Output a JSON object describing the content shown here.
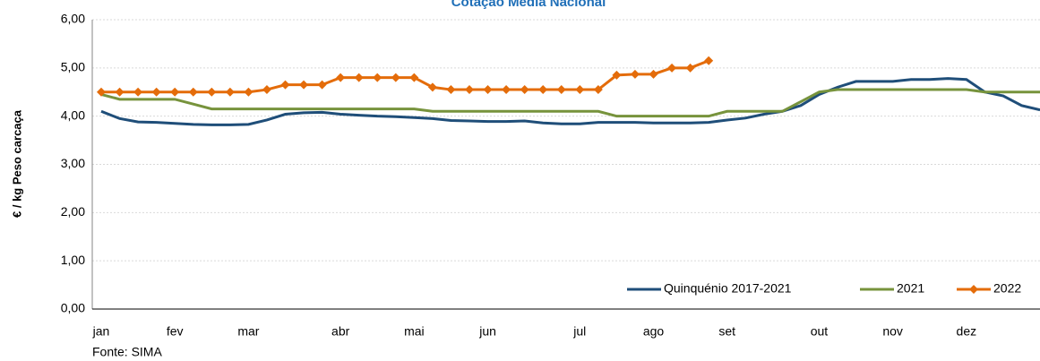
{
  "chart_data": {
    "type": "line",
    "title": "Cotação Média Nacional",
    "y_label": "€ / kg Peso carcaça",
    "source": "Fonte: SIMA",
    "categories": [
      "jan",
      null,
      null,
      null,
      "fev",
      null,
      null,
      null,
      "mar",
      null,
      null,
      null,
      null,
      "abr",
      null,
      null,
      null,
      "mai",
      null,
      null,
      null,
      "jun",
      null,
      null,
      null,
      null,
      "jul",
      null,
      null,
      null,
      "ago",
      null,
      null,
      null,
      "set",
      null,
      null,
      null,
      null,
      "out",
      null,
      null,
      null,
      "nov",
      null,
      null,
      null,
      "dez",
      null,
      null,
      null,
      null
    ],
    "series": [
      {
        "name": "Quinquénio 2017-2021",
        "color": "#1f4e79",
        "marker": false,
        "values": [
          4.1,
          3.95,
          3.88,
          3.87,
          3.85,
          3.83,
          3.82,
          3.82,
          3.83,
          3.92,
          4.04,
          4.07,
          4.08,
          4.04,
          4.02,
          4.0,
          3.99,
          3.97,
          3.95,
          3.91,
          3.9,
          3.89,
          3.89,
          3.9,
          3.86,
          3.84,
          3.84,
          3.87,
          3.87,
          3.87,
          3.86,
          3.86,
          3.86,
          3.87,
          3.92,
          3.96,
          4.04,
          4.1,
          4.22,
          4.45,
          4.6,
          4.72,
          4.72,
          4.72,
          4.76,
          4.76,
          4.78,
          4.76,
          4.5,
          4.42,
          4.22,
          4.13
        ]
      },
      {
        "name": "2021",
        "color": "#77933c",
        "marker": false,
        "values": [
          4.45,
          4.35,
          4.35,
          4.35,
          4.35,
          4.25,
          4.15,
          4.15,
          4.15,
          4.15,
          4.15,
          4.15,
          4.15,
          4.15,
          4.15,
          4.15,
          4.15,
          4.15,
          4.1,
          4.1,
          4.1,
          4.1,
          4.1,
          4.1,
          4.1,
          4.1,
          4.1,
          4.1,
          4.0,
          4.0,
          4.0,
          4.0,
          4.0,
          4.0,
          4.1,
          4.1,
          4.1,
          4.1,
          4.3,
          4.5,
          4.55,
          4.55,
          4.55,
          4.55,
          4.55,
          4.55,
          4.55,
          4.55,
          4.5,
          4.5,
          4.5,
          4.5
        ]
      },
      {
        "name": "2022",
        "color": "#e46c0a",
        "marker": true,
        "values": [
          4.5,
          4.5,
          4.5,
          4.5,
          4.5,
          4.5,
          4.5,
          4.5,
          4.5,
          4.55,
          4.65,
          4.65,
          4.65,
          4.8,
          4.8,
          4.8,
          4.8,
          4.8,
          4.6,
          4.55,
          4.55,
          4.55,
          4.55,
          4.55,
          4.55,
          4.55,
          4.55,
          4.55,
          4.85,
          4.87,
          4.87,
          5.0,
          5.0,
          5.15,
          null,
          null,
          null,
          null,
          null,
          null,
          null,
          null,
          null,
          null,
          null,
          null,
          null,
          null,
          null,
          null,
          null,
          null
        ]
      }
    ],
    "ylim": [
      0,
      6
    ],
    "yticks": [
      {
        "value": 0,
        "label": "0,00"
      },
      {
        "value": 1,
        "label": "1,00"
      },
      {
        "value": 2,
        "label": "2,00"
      },
      {
        "value": 3,
        "label": "3,00"
      },
      {
        "value": 4,
        "label": "4,00"
      },
      {
        "value": 5,
        "label": "5,00"
      },
      {
        "value": 6,
        "label": "6,00"
      }
    ],
    "grid": true,
    "legend": "lower right"
  }
}
